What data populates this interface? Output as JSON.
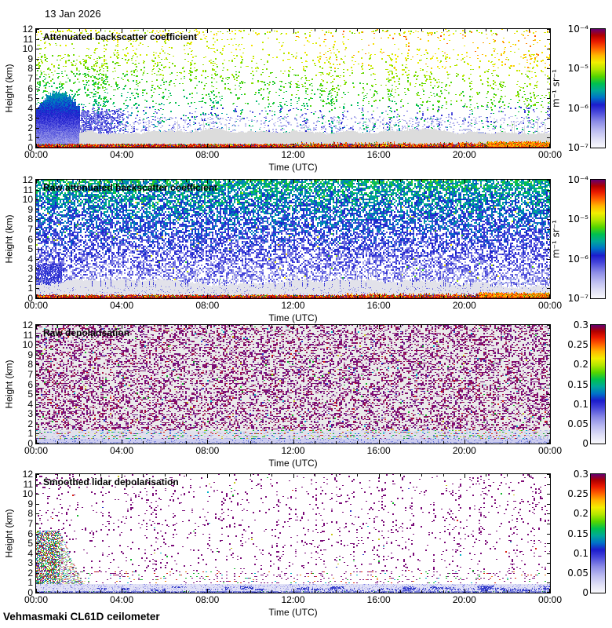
{
  "header": {
    "date": "13 Jan 2026"
  },
  "footer": {
    "station": "Vehmasmaki CL61D ceilometer"
  },
  "colormap_stops": [
    [
      0.0,
      "#f8f8fc"
    ],
    [
      0.06,
      "#e2e2f6"
    ],
    [
      0.14,
      "#bcbcf0"
    ],
    [
      0.22,
      "#8a8ae6"
    ],
    [
      0.3,
      "#4646da"
    ],
    [
      0.36,
      "#1c1ccc"
    ],
    [
      0.42,
      "#0072c8"
    ],
    [
      0.48,
      "#00a89a"
    ],
    [
      0.54,
      "#00c050"
    ],
    [
      0.6,
      "#55d500"
    ],
    [
      0.66,
      "#b2e600"
    ],
    [
      0.72,
      "#f2ee00"
    ],
    [
      0.78,
      "#ffb600"
    ],
    [
      0.84,
      "#ff6000"
    ],
    [
      0.9,
      "#e81800"
    ],
    [
      0.95,
      "#b00000"
    ],
    [
      1.0,
      "#6a006a"
    ]
  ],
  "chart_data": [
    {
      "type": "heatmap",
      "title": "Attenuated backscatter coefficient",
      "xlabel": "Time (UTC)",
      "ylabel": "Height (km)",
      "x_ticks": [
        "00:00",
        "04:00",
        "08:00",
        "12:00",
        "16:00",
        "20:00",
        "00:00"
      ],
      "x_range_hours": [
        0,
        24
      ],
      "y_ticks": [
        12,
        11,
        10,
        9,
        8,
        7,
        6,
        5,
        4,
        3,
        2,
        1,
        0
      ],
      "y_range_km": [
        0,
        12
      ],
      "colorbar": {
        "scale": "log",
        "unit": "m⁻¹ sr⁻¹",
        "tick_labels": [
          "10⁻⁴",
          "10⁻⁵",
          "10⁻⁶",
          "10⁻⁷"
        ],
        "min": "1e-7",
        "max": "1e-4"
      },
      "pattern": "backscatter",
      "features": {
        "surface_layer_top_km": 0.3,
        "strong_aerosol_start_frac": 0.875,
        "strong_aerosol_top_km": 0.55,
        "gray_layer_top_km": 1.5,
        "gray_color": "#dcdcdc",
        "cloud_blob_top_km": 5.2,
        "cloud_blob_width_frac": 0.085
      }
    },
    {
      "type": "heatmap",
      "title": "Raw attenuated backscatter coefficient",
      "xlabel": "Time (UTC)",
      "ylabel": "Height (km)",
      "x_ticks": [
        "00:00",
        "04:00",
        "08:00",
        "12:00",
        "16:00",
        "20:00",
        "00:00"
      ],
      "x_range_hours": [
        0,
        24
      ],
      "y_ticks": [
        12,
        11,
        10,
        9,
        8,
        7,
        6,
        5,
        4,
        3,
        2,
        1,
        0
      ],
      "y_range_km": [
        0,
        12
      ],
      "colorbar": {
        "scale": "log",
        "unit": "m⁻¹ sr⁻¹",
        "tick_labels": [
          "10⁻⁴",
          "10⁻⁵",
          "10⁻⁶",
          "10⁻⁷"
        ],
        "min": "1e-7",
        "max": "1e-4"
      },
      "pattern": "raw_backscatter",
      "features": {
        "noise_floor_gray_top_km": 1.25,
        "gray_color": "#e2e2ea",
        "surface_layer_top_km": 0.28,
        "strong_aerosol_start_frac": 0.86,
        "strong_aerosol_top_km": 0.5,
        "left_dense_top_km": 3.5,
        "left_dense_width_frac": 0.05
      }
    },
    {
      "type": "heatmap",
      "title": "Raw depolarisation",
      "xlabel": "Time (UTC)",
      "ylabel": "Height (km)",
      "x_ticks": [
        "00:00",
        "04:00",
        "08:00",
        "12:00",
        "16:00",
        "20:00",
        "00:00"
      ],
      "x_range_hours": [
        0,
        24
      ],
      "y_ticks": [
        12,
        11,
        10,
        9,
        8,
        7,
        6,
        5,
        4,
        3,
        2,
        1,
        0
      ],
      "y_range_km": [
        0,
        12
      ],
      "colorbar": {
        "scale": "linear",
        "tick_labels": [
          "0.3",
          "0.25",
          "0.2",
          "0.15",
          "0.1",
          "0.05",
          "0"
        ],
        "min": 0,
        "max": 0.3
      },
      "pattern": "raw_depol",
      "features": {
        "mixed_zone_top_km": 1.3,
        "low_band_top_km": 0.45,
        "low_band_color": "#ccccf0",
        "noise_cover": 0.44
      }
    },
    {
      "type": "heatmap",
      "title": "Smoothed lidar depolarisation",
      "xlabel": "Time (UTC)",
      "ylabel": "Height (km)",
      "x_ticks": [
        "00:00",
        "04:00",
        "08:00",
        "12:00",
        "16:00",
        "20:00",
        "00:00"
      ],
      "x_range_hours": [
        0,
        24
      ],
      "y_ticks": [
        12,
        11,
        10,
        9,
        8,
        7,
        6,
        5,
        4,
        3,
        2,
        1,
        0
      ],
      "y_range_km": [
        0,
        12
      ],
      "colorbar": {
        "scale": "linear",
        "tick_labels": [
          "0.3",
          "0.25",
          "0.2",
          "0.15",
          "0.1",
          "0.05",
          "0"
        ],
        "min": 0,
        "max": 0.3
      },
      "pattern": "smoothed_depol",
      "features": {
        "mid_band_km": [
          0.9,
          2.2
        ],
        "left_block_top_km": 6.3,
        "left_block_width_frac": 0.045,
        "low_band_top_km": 0.9,
        "low_band_color": "#e2e2f6"
      }
    }
  ]
}
